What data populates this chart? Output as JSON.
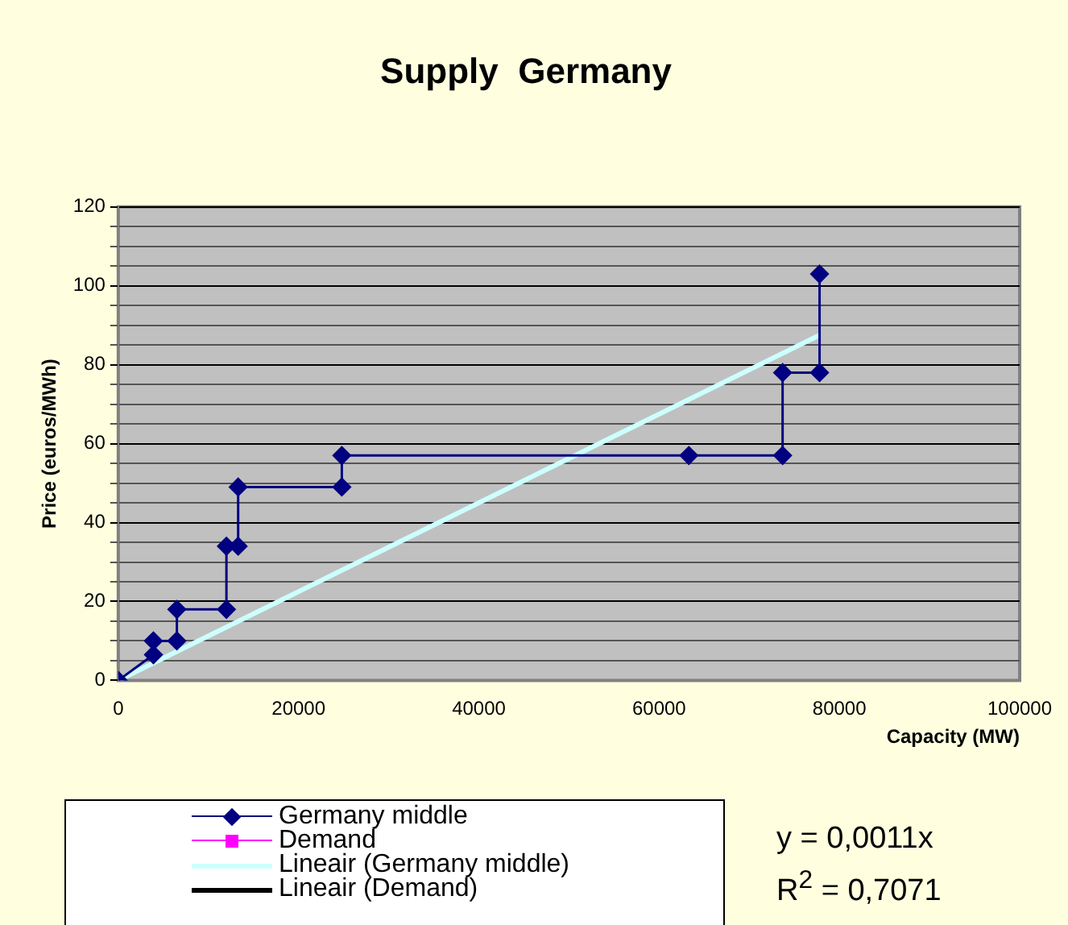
{
  "chart_data": {
    "type": "line",
    "title": "Supply  Germany",
    "xlabel": "Capacity (MW)",
    "ylabel": "Price (euros/MWh)",
    "xlim": [
      0,
      100000
    ],
    "xticks": [
      0,
      20000,
      40000,
      60000,
      80000,
      100000
    ],
    "ylim": [
      0,
      120
    ],
    "yticks": [
      0,
      {
        "value": 5,
        "label": null
      },
      {
        "value": 10,
        "label": null
      },
      {
        "value": 15,
        "label": null
      },
      20,
      {
        "value": 25,
        "label": null
      },
      {
        "value": 30,
        "label": null
      },
      {
        "value": 35,
        "label": null
      },
      40,
      {
        "value": 45,
        "label": null
      },
      {
        "value": 50,
        "label": null
      },
      {
        "value": 55,
        "label": null
      },
      60,
      {
        "value": 65,
        "label": null
      },
      {
        "value": 70,
        "label": null
      },
      {
        "value": 75,
        "label": null
      },
      80,
      {
        "value": 85,
        "label": null
      },
      {
        "value": 90,
        "label": null
      },
      {
        "value": 95,
        "label": null
      },
      100,
      {
        "value": 105,
        "label": null
      },
      {
        "value": 110,
        "label": null
      },
      {
        "value": 115,
        "label": null
      },
      120
    ],
    "grid": "y",
    "legend": "bottom left",
    "series": [
      {
        "name": "Germany middle",
        "color": "#000080",
        "marker": "diamond",
        "x": [
          0,
          3900,
          3900,
          6500,
          6500,
          12000,
          12000,
          13300,
          13300,
          24800,
          24800,
          63300,
          73700,
          73700,
          77800,
          77800
        ],
        "values": [
          0,
          6.5,
          10,
          10,
          18,
          18,
          34,
          34,
          49,
          49,
          57,
          57,
          57,
          78,
          78,
          103
        ]
      },
      {
        "name": "Demand",
        "color": "#ff00ff",
        "marker": "square"
      },
      {
        "name": "Lineair (Germany middle)",
        "color": "#ccffff",
        "marker": "none",
        "x": [
          0,
          77800
        ],
        "values": [
          0,
          87.5
        ]
      },
      {
        "name": "Lineair (Demand)",
        "color": "#000000",
        "marker": "none"
      }
    ],
    "annotations": [
      "y = 0,0011x",
      "R$^{2}$ = 0,7071"
    ]
  }
}
